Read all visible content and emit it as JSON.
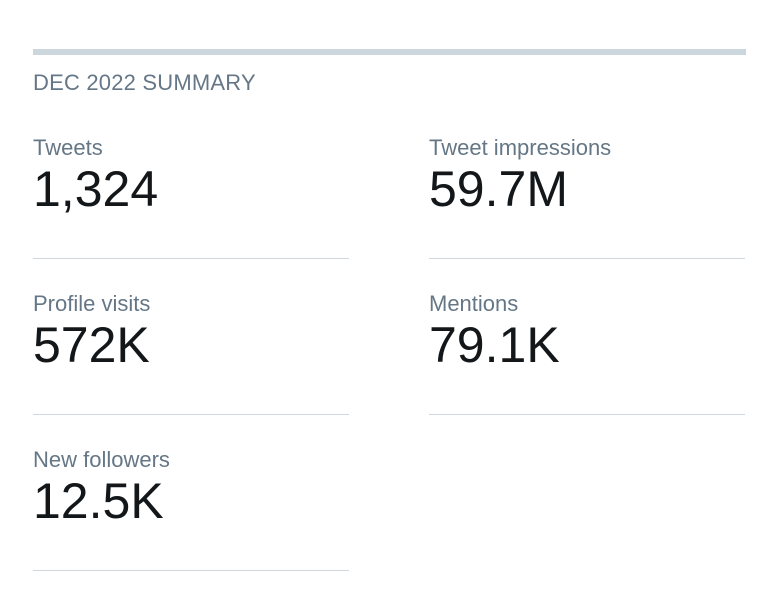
{
  "summary": {
    "title": "DEC 2022 SUMMARY",
    "stats": [
      {
        "label": "Tweets",
        "value": "1,324"
      },
      {
        "label": "Tweet impressions",
        "value": "59.7M"
      },
      {
        "label": "Profile visits",
        "value": "572K"
      },
      {
        "label": "Mentions",
        "value": "79.1K"
      },
      {
        "label": "New followers",
        "value": "12.5K"
      }
    ]
  },
  "colors": {
    "label": "#657786",
    "value": "#14171a",
    "divider": "#ccd6dd"
  }
}
